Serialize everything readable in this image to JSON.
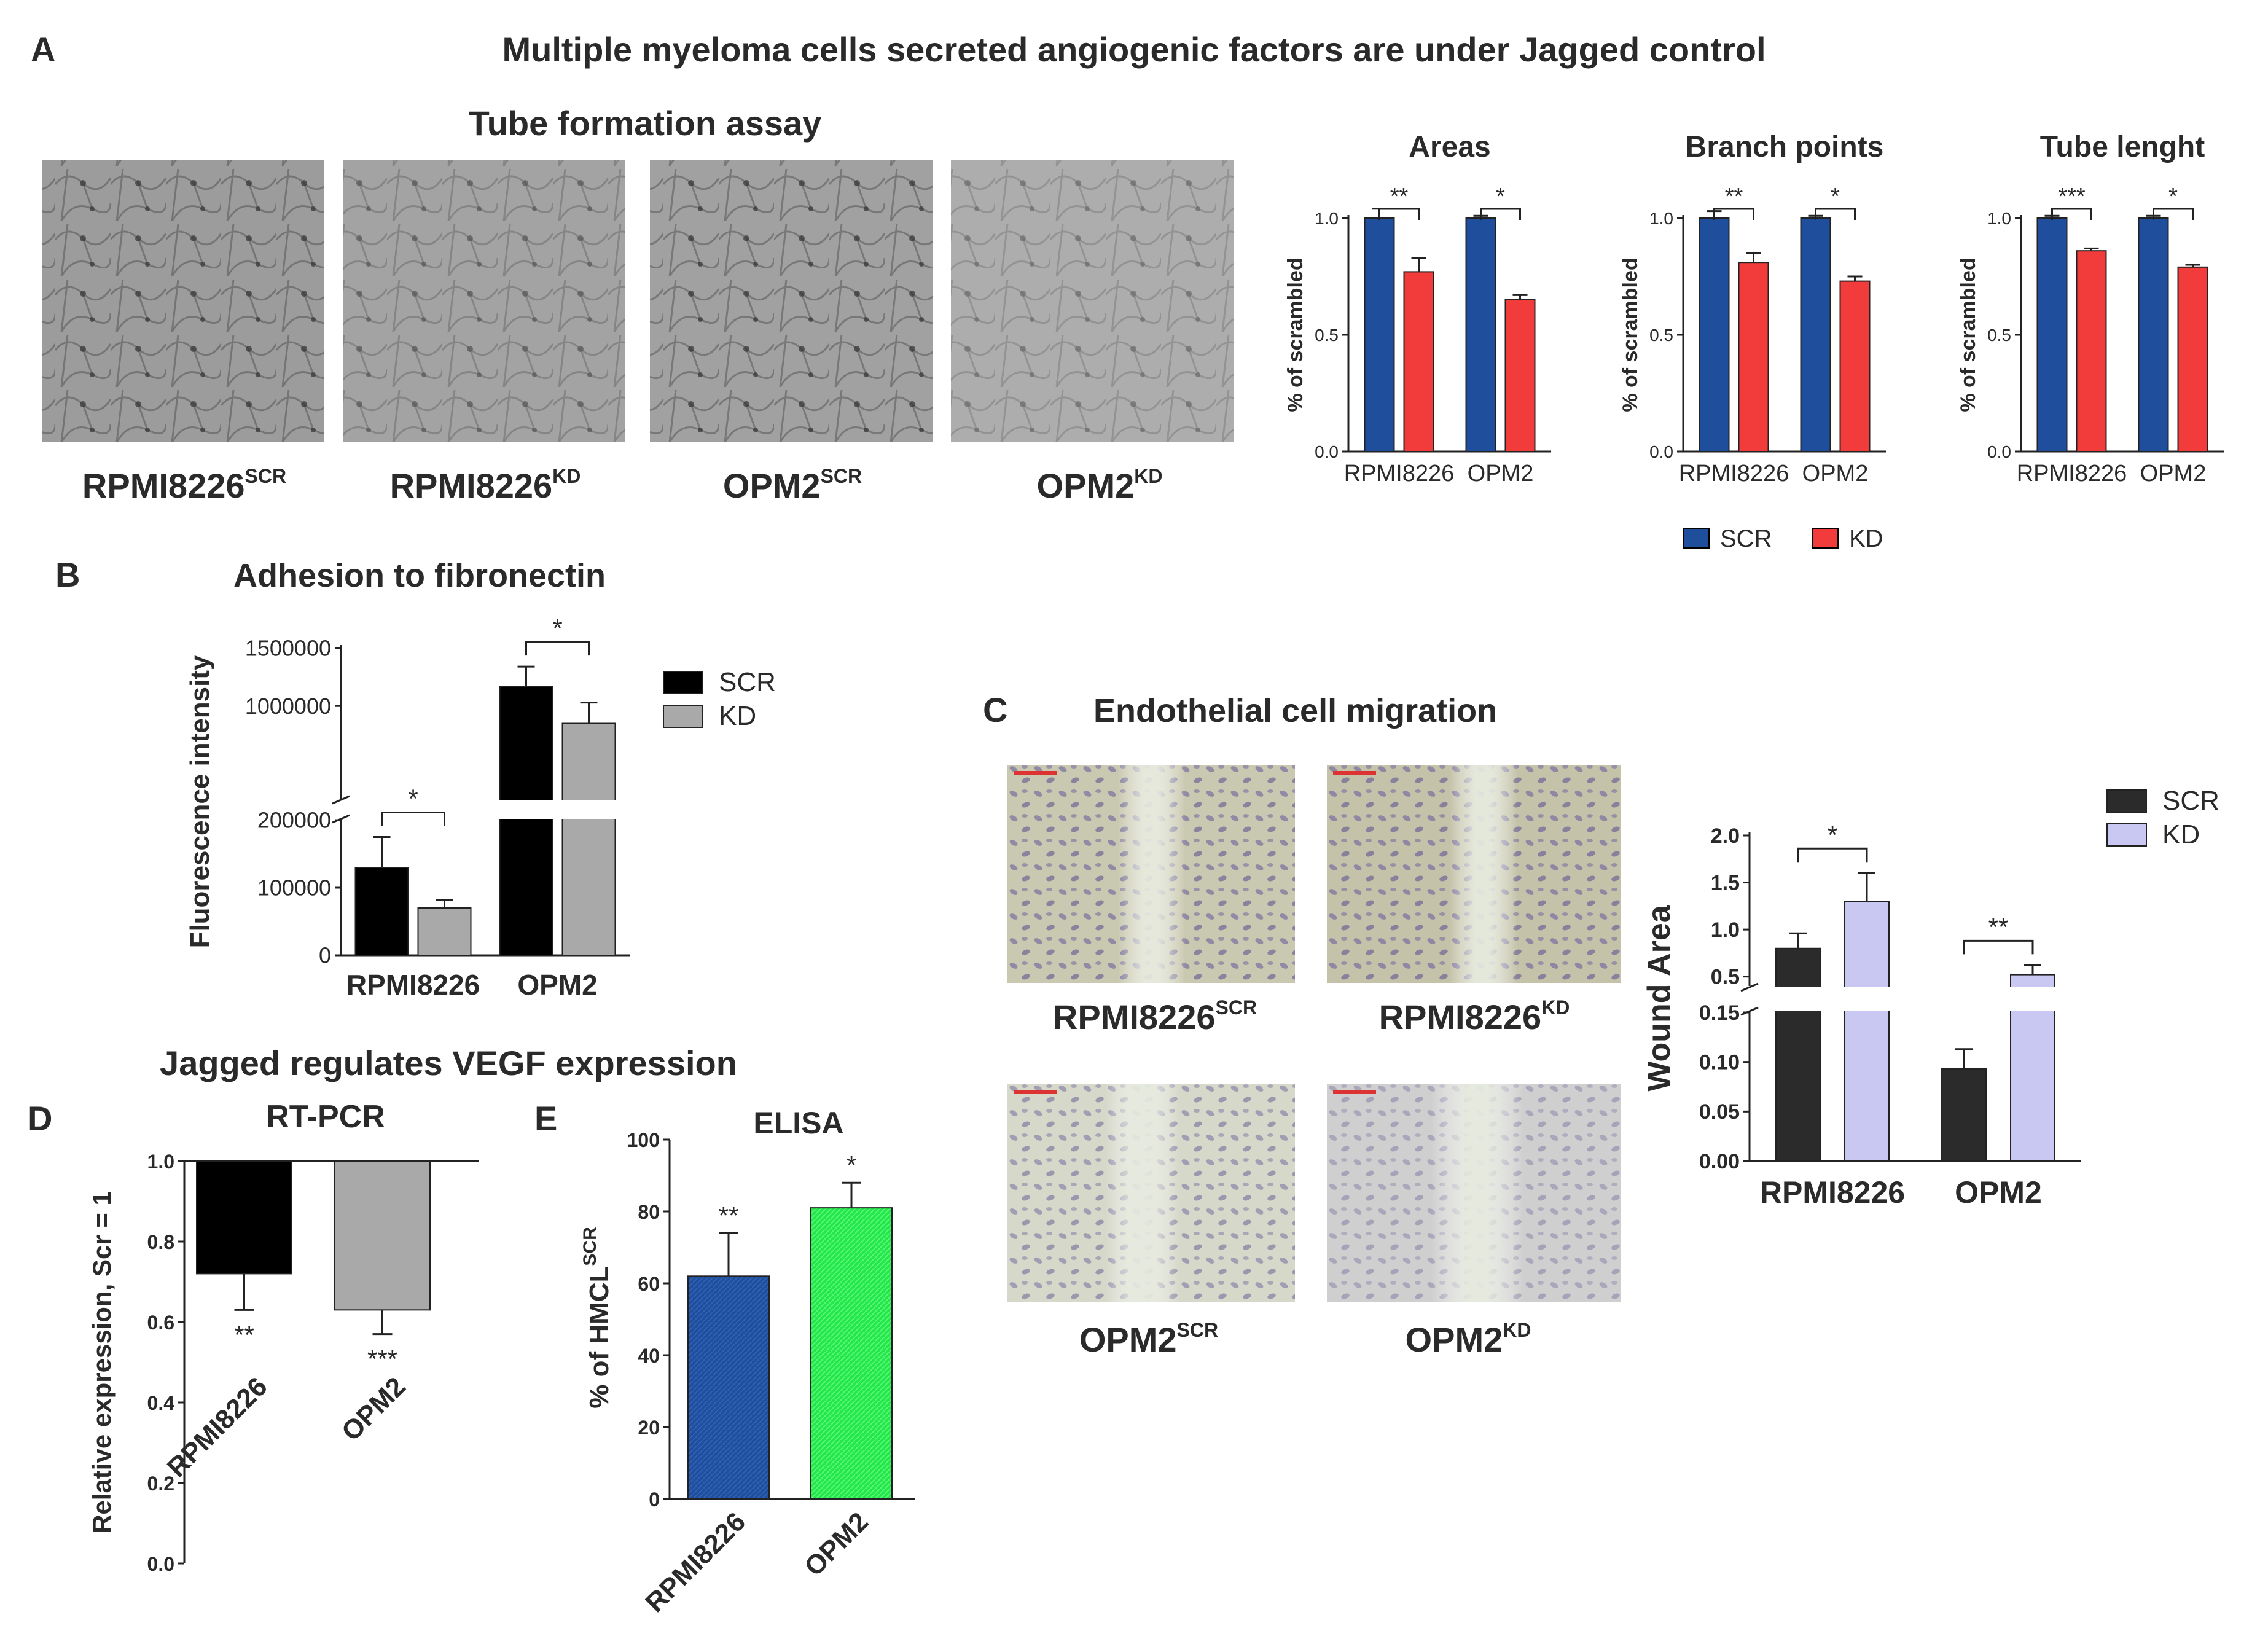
{
  "figure_title": "Multiple myeloma cells secreted angiogenic factors are under Jagged control",
  "panel_letters": {
    "a": "A",
    "b": "B",
    "c": "C",
    "d": "D",
    "e": "E"
  },
  "panel_a": {
    "heading": "Tube formation assay",
    "micrographs": [
      {
        "base": "RPMI8226",
        "sup": "SCR"
      },
      {
        "base": "RPMI8226",
        "sup": "KD"
      },
      {
        "base": "OPM2",
        "sup": "SCR"
      },
      {
        "base": "OPM2",
        "sup": "KD"
      }
    ],
    "legend": [
      {
        "label": "SCR",
        "color": "#1f4e9c"
      },
      {
        "label": "KD",
        "color": "#f23b3b"
      }
    ]
  },
  "panel_b": {
    "heading": "Adhesion to fibronectin"
  },
  "panel_c": {
    "heading": "Endothelial cell migration",
    "micrographs": [
      {
        "base": "RPMI8226",
        "sup": "SCR"
      },
      {
        "base": "RPMI8226",
        "sup": "KD"
      },
      {
        "base": "OPM2",
        "sup": "SCR"
      },
      {
        "base": "OPM2",
        "sup": "KD"
      }
    ]
  },
  "panel_de": {
    "heading": "Jagged regulates VEGF expression"
  },
  "chart_data": [
    {
      "id": "areas",
      "type": "bar",
      "title": "Areas",
      "categories": [
        "RPMI8226",
        "OPM2"
      ],
      "series": [
        {
          "name": "SCR",
          "color": "#1f4e9c",
          "values": [
            1.0,
            1.0
          ],
          "errors": [
            0.04,
            0.01
          ]
        },
        {
          "name": "KD",
          "color": "#f23b3b",
          "values": [
            0.77,
            0.65
          ],
          "errors": [
            0.06,
            0.02
          ]
        }
      ],
      "ylabel": "% of scrambled",
      "ylim": [
        0,
        1.0
      ],
      "yticks": [
        0.0,
        0.5,
        1.0
      ],
      "ytick_labels": [
        "0.0",
        "0.5",
        "1.0"
      ],
      "significance": [
        "**",
        "*"
      ]
    },
    {
      "id": "branch_points",
      "type": "bar",
      "title": "Branch points",
      "categories": [
        "RPMI8226",
        "OPM2"
      ],
      "series": [
        {
          "name": "SCR",
          "color": "#1f4e9c",
          "values": [
            1.0,
            1.0
          ],
          "errors": [
            0.03,
            0.01
          ]
        },
        {
          "name": "KD",
          "color": "#f23b3b",
          "values": [
            0.81,
            0.73
          ],
          "errors": [
            0.04,
            0.02
          ]
        }
      ],
      "ylabel": "% of scrambled",
      "ylim": [
        0,
        1.0
      ],
      "yticks": [
        0.0,
        0.5,
        1.0
      ],
      "ytick_labels": [
        "0.0",
        "0.5",
        "1.0"
      ],
      "significance": [
        "**",
        "*"
      ]
    },
    {
      "id": "tube_length",
      "type": "bar",
      "title": "Tube lenght",
      "categories": [
        "RPMI8226",
        "OPM2"
      ],
      "series": [
        {
          "name": "SCR",
          "color": "#1f4e9c",
          "values": [
            1.0,
            1.0
          ],
          "errors": [
            0.01,
            0.01
          ]
        },
        {
          "name": "KD",
          "color": "#f23b3b",
          "values": [
            0.86,
            0.79
          ],
          "errors": [
            0.01,
            0.01
          ]
        }
      ],
      "ylabel": "% of scrambled",
      "ylim": [
        0,
        1.0
      ],
      "yticks": [
        0.0,
        0.5,
        1.0
      ],
      "ytick_labels": [
        "0.0",
        "0.5",
        "1.0"
      ],
      "significance": [
        "***",
        "*"
      ]
    },
    {
      "id": "adhesion",
      "type": "bar",
      "title": "Adhesion to fibronectin",
      "categories": [
        "RPMI8226",
        "OPM2"
      ],
      "series": [
        {
          "name": "SCR",
          "color": "#000000",
          "values": [
            130000,
            1170000
          ],
          "errors": [
            45000,
            170000
          ]
        },
        {
          "name": "KD",
          "color": "#a9a9a9",
          "values": [
            70000,
            850000
          ],
          "errors": [
            12000,
            180000
          ]
        }
      ],
      "ylabel": "Fluorescence intensity",
      "axis_break": {
        "lower": [
          0,
          200000
        ],
        "upper": [
          200000,
          1500000
        ]
      },
      "yticks": [
        0,
        100000,
        200000,
        1000000,
        1500000
      ],
      "ytick_labels": [
        "0",
        "100000",
        "200000",
        "1000000",
        "1500000"
      ],
      "legend": "right",
      "significance": [
        "*",
        "*"
      ]
    },
    {
      "id": "wound_area",
      "type": "bar",
      "title": "",
      "categories": [
        "RPMI8226",
        "OPM2"
      ],
      "series": [
        {
          "name": "SCR",
          "color": "#2b2b2b",
          "values": [
            0.8,
            0.093
          ],
          "errors": [
            0.16,
            0.02
          ]
        },
        {
          "name": "KD",
          "color": "#c8c8f2",
          "values": [
            1.3,
            0.52
          ],
          "errors": [
            0.3,
            0.1
          ]
        }
      ],
      "ylabel": "Wound Area",
      "axis_break": {
        "lower": [
          0,
          0.15
        ],
        "upper": [
          0.4,
          2.0
        ]
      },
      "yticks": [
        0.0,
        0.05,
        0.1,
        0.15,
        0.5,
        1.0,
        1.5,
        2.0
      ],
      "ytick_labels": [
        "0.00",
        "0.05",
        "0.10",
        "0.15",
        "0.5",
        "1.0",
        "1.5",
        "2.0"
      ],
      "legend": "top-right",
      "significance": [
        "*",
        "**"
      ]
    },
    {
      "id": "rt_pcr",
      "type": "bar",
      "title": "RT-PCR",
      "categories": [
        "RPMI8226",
        "OPM2"
      ],
      "series": [
        {
          "name": "",
          "colors": [
            "#000000",
            "#a9a9a9"
          ],
          "values": [
            0.72,
            0.63
          ],
          "errors": [
            0.09,
            0.06
          ]
        }
      ],
      "ylabel": "Relative expression, Scr = 1",
      "ylim": [
        0,
        1.0
      ],
      "yticks": [
        0.0,
        0.2,
        0.4,
        0.6,
        0.8,
        1.0
      ],
      "ytick_labels": [
        "0.0",
        "0.2",
        "0.4",
        "0.6",
        "0.8",
        "1.0"
      ],
      "bars_hang_from_top": true,
      "significance": [
        "**",
        "***"
      ]
    },
    {
      "id": "elisa",
      "type": "bar",
      "title": "ELISA",
      "categories": [
        "RPMI8226",
        "OPM2"
      ],
      "series": [
        {
          "name": "",
          "colors": [
            "#1f4e9c",
            "#22e84a"
          ],
          "values": [
            62,
            81
          ],
          "errors": [
            12,
            7
          ]
        }
      ],
      "ylabel": "% of HMCL",
      "ylabel_sup": "SCR",
      "ylim": [
        0,
        100
      ],
      "yticks": [
        0,
        20,
        40,
        60,
        80,
        100
      ],
      "ytick_labels": [
        "0",
        "20",
        "40",
        "60",
        "80",
        "100"
      ],
      "significance": [
        "**",
        "*"
      ]
    }
  ]
}
